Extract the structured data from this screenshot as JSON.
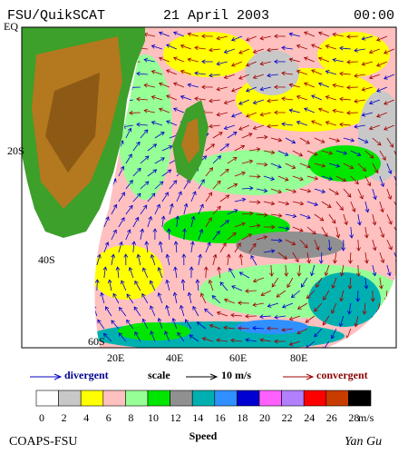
{
  "header": {
    "left": "FSU/QuikSCAT",
    "center": "21 April 2003",
    "right": "00:00"
  },
  "map": {
    "lat_labels": [
      "EQ",
      "20S",
      "40S",
      "60S"
    ],
    "lon_labels": [
      "20E",
      "40E",
      "60E",
      "80E"
    ]
  },
  "legend": {
    "divergent": "divergent",
    "scale": "scale",
    "scale_value": "10 m/s",
    "convergent": "convergent"
  },
  "colorbar": {
    "title": "Speed",
    "unit": "m/s",
    "labels": [
      0,
      2,
      4,
      6,
      8,
      10,
      12,
      14,
      16,
      18,
      20,
      22,
      24,
      26,
      28
    ],
    "colors": [
      "#ffffff",
      "#c8c8c8",
      "#ffff00",
      "#ffc0c0",
      "#96ff96",
      "#00e600",
      "#909090",
      "#00b0b0",
      "#3090ff",
      "#0000d0",
      "#ff60ff",
      "#b080ff",
      "#ff0000",
      "#c83c00",
      "#000000"
    ]
  },
  "footer": {
    "left": "COAPS-FSU",
    "right": "Yan Gu"
  }
}
